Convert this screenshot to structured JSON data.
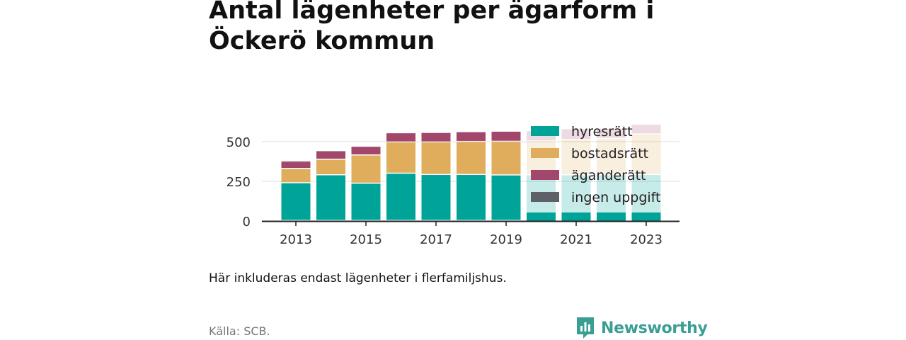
{
  "title": "Antal lägenheter per ägarform i Öckerö kommun",
  "note": "Här inkluderas endast lägenheter i flerfamiljshus.",
  "source": "Källa: SCB.",
  "brand": "Newsworthy",
  "chart_data": {
    "type": "bar",
    "stacked": true,
    "categories": [
      "2013",
      "2014",
      "2015",
      "2016",
      "2017",
      "2018",
      "2019",
      "2020",
      "2021",
      "2022",
      "2023"
    ],
    "x_tick_labels": [
      "2013",
      "2015",
      "2017",
      "2019",
      "2021",
      "2023"
    ],
    "y_ticks": [
      0,
      250,
      500
    ],
    "ylim": [
      0,
      620
    ],
    "grid": true,
    "legend_position": "right, overlapping the last bars",
    "faded_from_index": 7,
    "series": [
      {
        "name": "hyresrätt",
        "color": "#00a398",
        "values": [
          238,
          288,
          235,
          298,
          290,
          290,
          287,
          288,
          288,
          289,
          290
        ]
      },
      {
        "name": "bostadsrätt",
        "color": "#dfad5b",
        "values": [
          90,
          98,
          178,
          197,
          205,
          208,
          212,
          213,
          222,
          228,
          255
        ]
      },
      {
        "name": "äganderätt",
        "color": "#a3466c",
        "values": [
          45,
          52,
          55,
          58,
          60,
          62,
          64,
          65,
          68,
          65,
          62
        ]
      },
      {
        "name": "ingen uppgift",
        "color": "#5e6166",
        "values": [
          4,
          3,
          0,
          0,
          0,
          0,
          0,
          0,
          0,
          0,
          0
        ]
      }
    ]
  }
}
